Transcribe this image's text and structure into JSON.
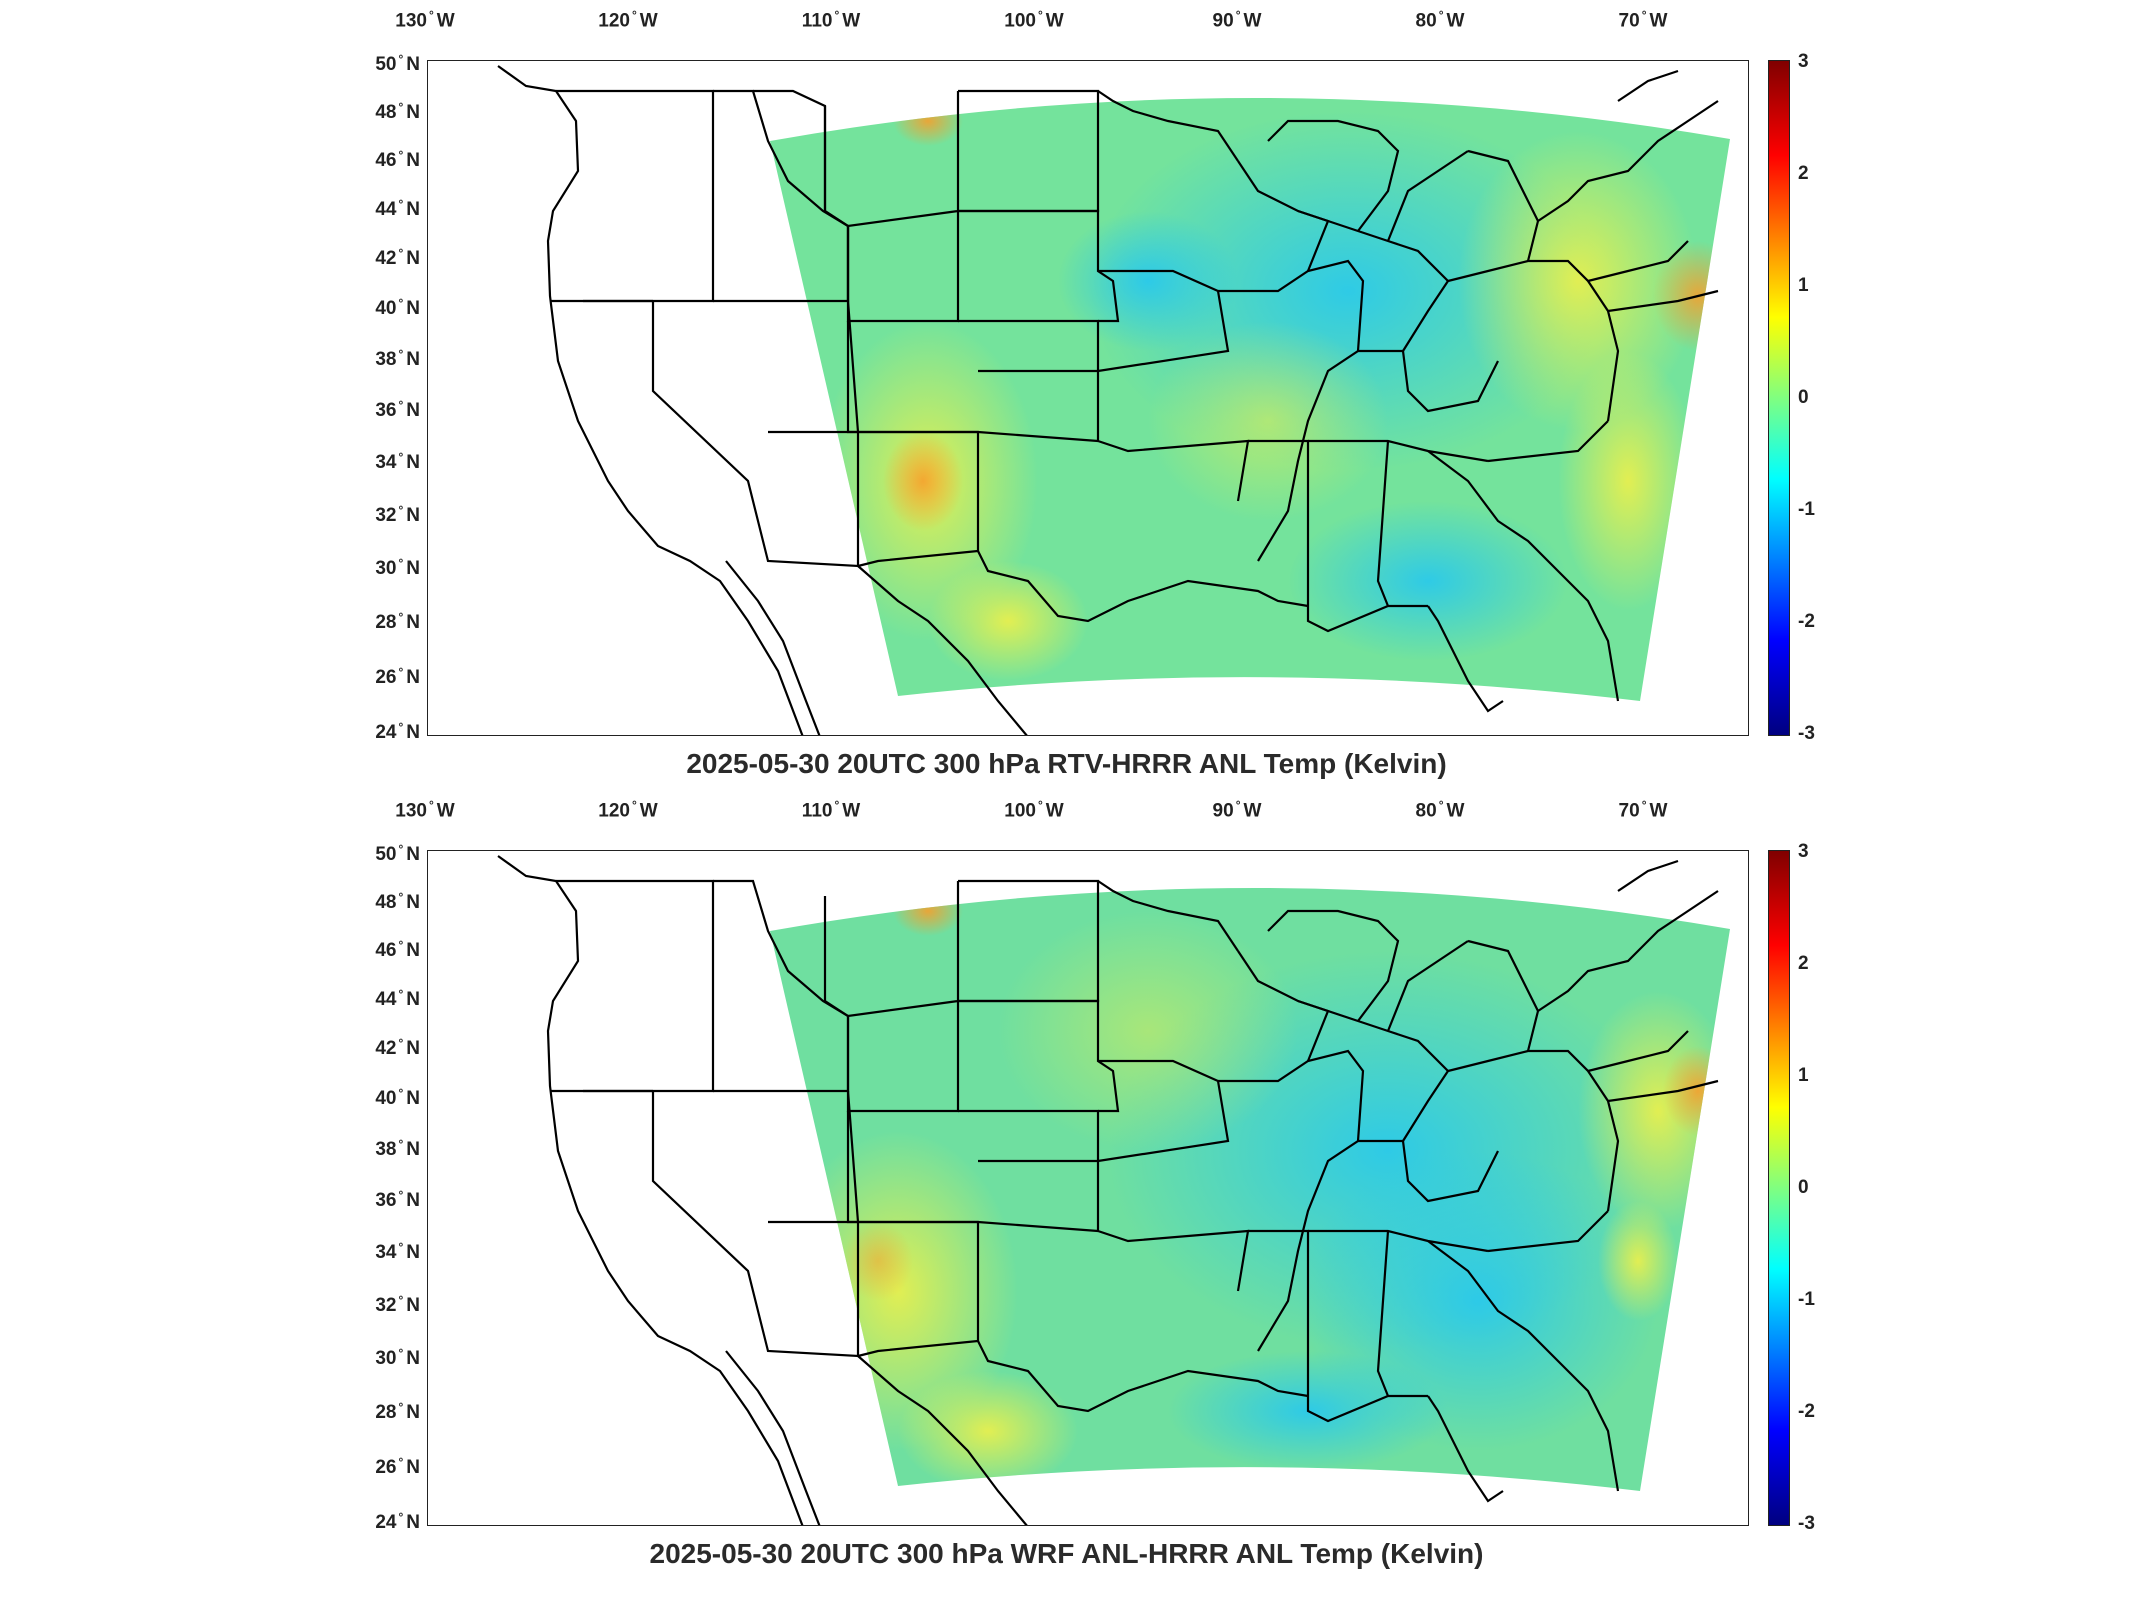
{
  "panels": [
    {
      "title": "2025-05-30 20UTC 300 hPa RTV-HRRR ANL Temp (Kelvin)",
      "colorbar": {
        "min": -3,
        "max": 3,
        "ticks": [
          "3",
          "2",
          "1",
          "0",
          "-1",
          "-2",
          "-3"
        ],
        "colormap": "jet"
      }
    },
    {
      "title": "2025-05-30 20UTC 300 hPa WRF ANL-HRRR ANL Temp (Kelvin)",
      "colorbar": {
        "min": -3,
        "max": 3,
        "ticks": [
          "3",
          "2",
          "1",
          "0",
          "-1",
          "-2",
          "-3"
        ],
        "colormap": "jet"
      }
    }
  ],
  "axes": {
    "lon_ticks": [
      "130",
      "120",
      "110",
      "100",
      "90",
      "80",
      "70"
    ],
    "lon_hemisphere": "W",
    "lat_ticks": [
      "50",
      "48",
      "46",
      "44",
      "42",
      "40",
      "38",
      "36",
      "34",
      "32",
      "30",
      "28",
      "26",
      "24"
    ],
    "lat_hemisphere": "N"
  },
  "colors": {
    "field_main": "#6fe39a",
    "field_cool": "#3fd9e8",
    "field_warm": "#e8ef4a",
    "field_hot": "#f39a2a",
    "boundaries": "#000000"
  }
}
